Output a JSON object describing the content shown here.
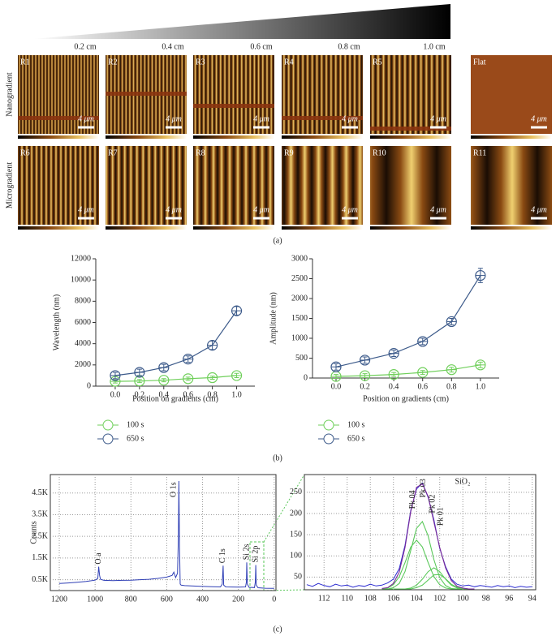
{
  "panel_a": {
    "gradient_labels": [
      "0.2 cm",
      "0.4 cm",
      "0.6 cm",
      "0.8 cm",
      "1.0 cm"
    ],
    "row_labels": [
      "Nanogradient",
      "Microgradient"
    ],
    "rows": [
      [
        "R1",
        "R2",
        "R3",
        "R4",
        "R5",
        "Flat"
      ],
      [
        "R6",
        "R7",
        "R8",
        "R9",
        "R10",
        "R11"
      ]
    ],
    "scale_bar": "4 μm",
    "label": "(a)"
  },
  "panel_labels": {
    "b": "(b)",
    "c": "(c)"
  },
  "chart_data": [
    {
      "type": "line",
      "xlabel": "Position on gradients (cm)",
      "ylabel": "Wavelength (nm)",
      "x": [
        0,
        0.2,
        0.4,
        0.6,
        0.8,
        1
      ],
      "xlim": [
        -0.16,
        1.15
      ],
      "xticks": [
        {
          "value": 0,
          "label": "0.0"
        },
        0.2,
        0.4,
        0.6,
        0.8,
        {
          "value": 1,
          "label": "1.0"
        }
      ],
      "ylim": [
        0,
        12000
      ],
      "yticks": [
        0,
        2000,
        4000,
        6000,
        8000,
        10000,
        12000
      ],
      "legend": "below",
      "series": [
        {
          "name": "100 s",
          "color": "#6fcf5a",
          "values": [
            450,
            480,
            560,
            700,
            800,
            1000
          ],
          "errors": [
            150,
            150,
            150,
            150,
            150,
            200
          ]
        },
        {
          "name": "650 s",
          "color": "#3c5a8a",
          "values": [
            1000,
            1300,
            1750,
            2550,
            3850,
            7100
          ],
          "errors": [
            300,
            300,
            300,
            300,
            400,
            400
          ]
        }
      ]
    },
    {
      "type": "line",
      "xlabel": "Position on gradients (cm)",
      "ylabel": "Amplitude (nm)",
      "x": [
        0,
        0.2,
        0.4,
        0.6,
        0.8,
        1
      ],
      "xlim": [
        -0.163,
        1.13
      ],
      "xticks": [
        {
          "value": 0,
          "label": "0.0"
        },
        0.2,
        0.4,
        0.6,
        0.8,
        {
          "value": 1,
          "label": "1.0"
        }
      ],
      "ylim": [
        0,
        3000
      ],
      "yticks": [
        0,
        500,
        1000,
        1500,
        2000,
        2500,
        3000
      ],
      "legend": "below",
      "series": [
        {
          "name": "100 s",
          "color": "#6fcf5a",
          "values": [
            40,
            60,
            90,
            140,
            210,
            330
          ],
          "errors": [
            50,
            50,
            50,
            50,
            60,
            70
          ]
        },
        {
          "name": "650 s",
          "color": "#3c5a8a",
          "values": [
            280,
            450,
            620,
            920,
            1420,
            2580
          ],
          "errors": [
            80,
            80,
            80,
            80,
            80,
            180
          ]
        }
      ]
    },
    {
      "type": "spectrum",
      "ylabel": "Counts",
      "grid": true,
      "x": [
        1200,
        1150,
        1100,
        1050,
        1000,
        985,
        980,
        975,
        970,
        950,
        900,
        850,
        800,
        750,
        700,
        650,
        600,
        570,
        560,
        550,
        540,
        535,
        532,
        529,
        525,
        520,
        500,
        450,
        400,
        350,
        300,
        290,
        285,
        282,
        270,
        200,
        160,
        155,
        153,
        150,
        140,
        110,
        105,
        103,
        100,
        90,
        50,
        0
      ],
      "xlim": [
        1250,
        -10
      ],
      "xticks": [
        1200,
        1000,
        800,
        600,
        400,
        200,
        0
      ],
      "ylim": [
        0,
        5350
      ],
      "yticks": [
        {
          "value": 500,
          "label": "0.5K"
        },
        {
          "value": 1500,
          "label": "1.5K"
        },
        {
          "value": 2500,
          "label": "2.5K"
        },
        {
          "value": 3500,
          "label": "3.5K"
        },
        {
          "value": 4500,
          "label": "4.5K"
        }
      ],
      "series": [
        {
          "color": "#2f3fb5",
          "values": [
            330,
            350,
            380,
            420,
            480,
            560,
            1100,
            700,
            520,
            470,
            460,
            470,
            480,
            500,
            520,
            560,
            620,
            700,
            850,
            600,
            800,
            2500,
            5050,
            2200,
            300,
            250,
            230,
            210,
            190,
            180,
            170,
            300,
            1150,
            250,
            170,
            160,
            170,
            400,
            1300,
            300,
            150,
            140,
            400,
            1180,
            250,
            130,
            110,
            100
          ]
        }
      ],
      "annotations": [
        {
          "text": "O a",
          "x": 980,
          "y": 1100
        },
        {
          "text": "O 1s",
          "x": 532,
          "y": 5050
        },
        {
          "text": "C 1s",
          "x": 285,
          "y": 1150
        },
        {
          "text": "Si 2s",
          "x": 153,
          "y": 1300
        },
        {
          "text": "Si 2p",
          "x": 103,
          "y": 1180
        }
      ]
    },
    {
      "type": "spectrum",
      "title": "SiO₂",
      "grid": true,
      "xlim": [
        113.7,
        93.7
      ],
      "xticks": [
        112,
        110,
        108,
        106,
        104,
        102,
        100,
        98,
        96,
        94
      ],
      "ylim": [
        20,
        292
      ],
      "yticks": [
        50,
        100,
        150,
        200,
        250
      ],
      "series": [
        {
          "color": "#2b2bd0",
          "x": [
            113.5,
            113,
            112.5,
            112,
            111.5,
            111,
            110.5,
            110,
            109.5,
            109,
            108.5,
            108,
            107.5,
            107,
            106.5,
            106,
            105.5,
            105,
            104.5,
            104,
            103.5,
            103,
            102.5,
            102,
            101.5,
            101,
            100.5,
            100,
            99.5,
            99,
            98.5,
            98,
            97.5,
            97,
            96.5,
            96,
            95.5,
            95,
            94.5,
            94
          ],
          "values": [
            32,
            28,
            35,
            30,
            27,
            33,
            29,
            31,
            26,
            30,
            28,
            33,
            29,
            31,
            36,
            45,
            70,
            125,
            208,
            258,
            272,
            238,
            185,
            118,
            75,
            45,
            33,
            29,
            31,
            27,
            30,
            28,
            26,
            30,
            27,
            29,
            25,
            28,
            26,
            27
          ]
        },
        {
          "color": "#5ac85a",
          "x": [
            107,
            106.5,
            106,
            105.5,
            105,
            104.5,
            104,
            103.5,
            103,
            102.5,
            102,
            101.5,
            101,
            100.5,
            100,
            99.5,
            99
          ],
          "values": [
            22,
            24,
            32,
            51,
            84,
            121,
            137,
            121,
            84,
            51,
            32,
            24,
            22,
            22,
            22,
            22,
            22
          ]
        },
        {
          "color": "#5ac85a",
          "x": [
            107,
            106.5,
            106,
            105.5,
            105,
            104.5,
            104,
            103.5,
            103,
            102.5,
            102,
            101.5,
            101,
            100.5,
            100,
            99.5,
            99
          ],
          "values": [
            22,
            22,
            25,
            35,
            63,
            113,
            165,
            181,
            147,
            91,
            49,
            30,
            23,
            22,
            22,
            22,
            22
          ]
        },
        {
          "color": "#5ac85a",
          "x": [
            107,
            106.5,
            106,
            105.5,
            105,
            104.5,
            104,
            103.5,
            103,
            102.5,
            102,
            101.5,
            101,
            100.5,
            100,
            99.5,
            99
          ],
          "values": [
            22,
            22,
            22,
            22,
            22,
            24,
            31,
            45,
            63,
            72,
            63,
            45,
            31,
            24,
            22,
            22,
            22
          ]
        },
        {
          "color": "#5ac85a",
          "x": [
            107,
            106.5,
            106,
            105.5,
            105,
            104.5,
            104,
            103.5,
            103,
            102.5,
            102,
            101.5,
            101,
            100.5,
            100,
            99.5,
            99
          ],
          "values": [
            22,
            22,
            22,
            22,
            22,
            22,
            25,
            31,
            43,
            55,
            56,
            46,
            33,
            26,
            23,
            22,
            22
          ]
        },
        {
          "color": "#7a2a9a",
          "x": [
            107,
            106.5,
            106,
            105.5,
            105,
            104.5,
            104,
            103.5,
            103,
            102.5,
            102,
            101.5,
            101,
            100.5,
            100,
            99.5,
            99
          ],
          "values": [
            23,
            25,
            35,
            62,
            120,
            205,
            262,
            270,
            240,
            180,
            120,
            72,
            42,
            28,
            24,
            22,
            22
          ]
        }
      ],
      "annotations": [
        {
          "text": "Pk 04",
          "x": 104.3,
          "y": 205
        },
        {
          "text": "Pk 03",
          "x": 103.4,
          "y": 232
        },
        {
          "text": "Pk 02",
          "x": 102.6,
          "y": 195
        },
        {
          "text": "Pk 01",
          "x": 101.9,
          "y": 165
        }
      ]
    }
  ]
}
